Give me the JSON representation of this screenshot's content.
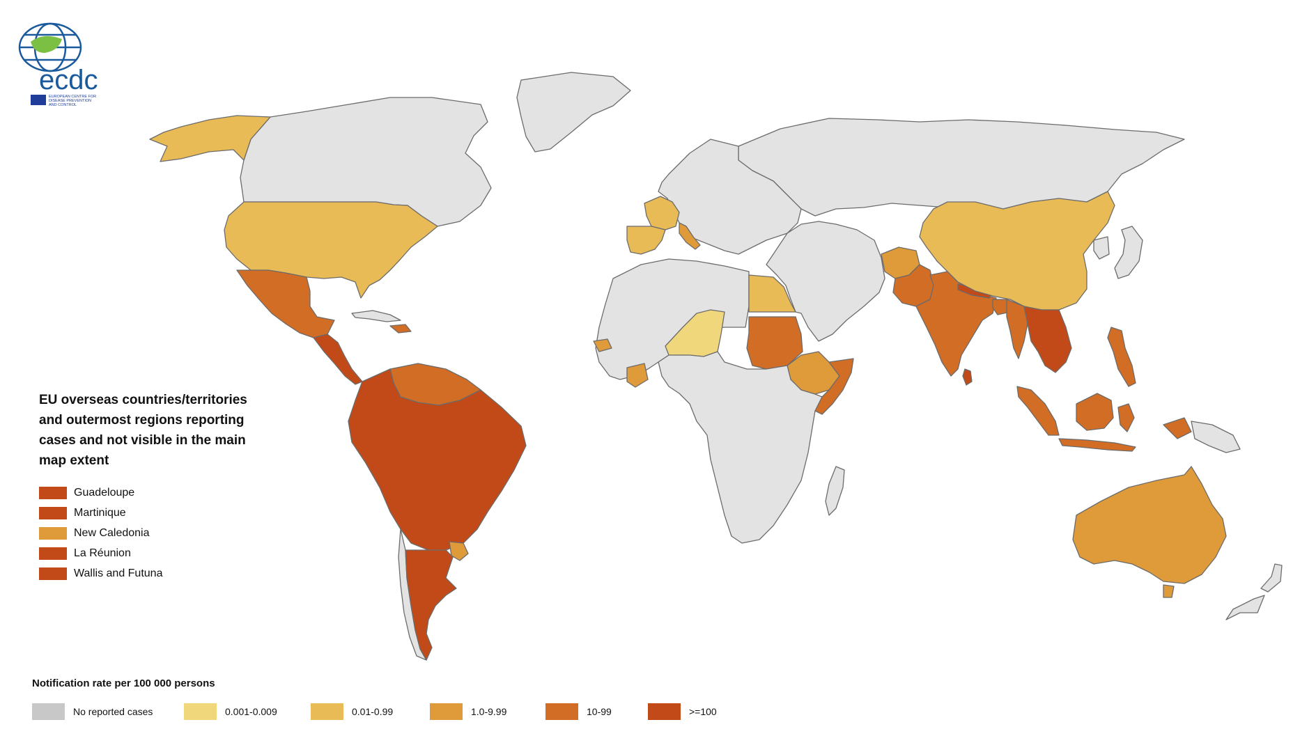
{
  "logo": {
    "wordmark": "ecdc",
    "caption_line1": "EUROPEAN CENTRE FOR",
    "caption_line2": "DISEASE PREVENTION",
    "caption_line3": "AND CONTROL"
  },
  "colors": {
    "no_cases": "#e3e3e3",
    "legend_no_cases": "#c8c8c8",
    "cat1": "#f0d77c",
    "cat2": "#e9bb57",
    "cat3": "#df9a3a",
    "cat4": "#d26d25",
    "cat5": "#c24a18",
    "border": "#6b6b6b",
    "ocean": "#ffffff"
  },
  "eu_overseas_legend": {
    "title": "EU overseas countries/territories and outermost regions reporting cases and not visible in the main map extent",
    "items": [
      {
        "label": "Guadeloupe",
        "color": "#c24a18"
      },
      {
        "label": "Martinique",
        "color": "#c24a18"
      },
      {
        "label": "New Caledonia",
        "color": "#df9a3a"
      },
      {
        "label": "La Réunion",
        "color": "#c24a18"
      },
      {
        "label": "Wallis and Futuna",
        "color": "#c24a18"
      }
    ]
  },
  "rate_legend": {
    "title": "Notification rate per 100 000 persons",
    "items": [
      {
        "label": "No reported cases",
        "color": "#c8c8c8"
      },
      {
        "label": "0.001-0.009",
        "color": "#f0d77c"
      },
      {
        "label": "0.01-0.99",
        "color": "#e9bb57"
      },
      {
        "label": "1.0-9.99",
        "color": "#df9a3a"
      },
      {
        "label": "10-99",
        "color": "#d26d25"
      },
      {
        "label": ">=100",
        "color": "#c24a18"
      }
    ]
  },
  "regions": [
    {
      "name": "Greenland",
      "category": "none"
    },
    {
      "name": "Canada",
      "category": "none"
    },
    {
      "name": "Alaska (USA)",
      "category": "0.01-0.99"
    },
    {
      "name": "United States",
      "category": "0.01-0.99"
    },
    {
      "name": "Mexico",
      "category": "10-99"
    },
    {
      "name": "Central America",
      "category": ">=100"
    },
    {
      "name": "Cuba",
      "category": "none"
    },
    {
      "name": "Dominican Republic",
      "category": "10-99"
    },
    {
      "name": "Venezuela and Guianas",
      "category": "10-99"
    },
    {
      "name": "South America (north)",
      "category": ">=100"
    },
    {
      "name": "Chile",
      "category": "none"
    },
    {
      "name": "Argentina",
      "category": ">=100"
    },
    {
      "name": "Uruguay",
      "category": "1.0-9.99"
    },
    {
      "name": "Russia and Northern Asia",
      "category": "none"
    },
    {
      "name": "Europe",
      "category": "none"
    },
    {
      "name": "France",
      "category": "0.01-0.99"
    },
    {
      "name": "Spain and Portugal",
      "category": "0.01-0.99"
    },
    {
      "name": "Italy",
      "category": "1.0-9.99"
    },
    {
      "name": "North and West Africa",
      "category": "none"
    },
    {
      "name": "Egypt",
      "category": "0.01-0.99"
    },
    {
      "name": "Niger",
      "category": "0.001-0.009"
    },
    {
      "name": "Sudan",
      "category": "10-99"
    },
    {
      "name": "Ethiopia",
      "category": "1.0-9.99"
    },
    {
      "name": "Somalia and Kenya coast",
      "category": "10-99"
    },
    {
      "name": "Senegal",
      "category": "1.0-9.99"
    },
    {
      "name": "Côte d'Ivoire",
      "category": "1.0-9.99"
    },
    {
      "name": "Central and Southern Africa",
      "category": "none"
    },
    {
      "name": "Madagascar",
      "category": "none"
    },
    {
      "name": "Middle East",
      "category": "none"
    },
    {
      "name": "Afghanistan",
      "category": "1.0-9.99"
    },
    {
      "name": "Pakistan",
      "category": "10-99"
    },
    {
      "name": "India",
      "category": "10-99"
    },
    {
      "name": "Nepal",
      "category": ">=100"
    },
    {
      "name": "Bangladesh",
      "category": "10-99"
    },
    {
      "name": "Sri Lanka",
      "category": ">=100"
    },
    {
      "name": "China",
      "category": "0.01-0.99"
    },
    {
      "name": "Japan and Korea",
      "category": "none"
    },
    {
      "name": "Myanmar",
      "category": "10-99"
    },
    {
      "name": "Thailand, Laos, Cambodia, Vietnam",
      "category": ">=100"
    },
    {
      "name": "Philippines",
      "category": "10-99"
    },
    {
      "name": "Malaysia and Sumatra",
      "category": "10-99"
    },
    {
      "name": "Borneo",
      "category": "10-99"
    },
    {
      "name": "Java",
      "category": "10-99"
    },
    {
      "name": "Sulawesi",
      "category": "10-99"
    },
    {
      "name": "Papua New Guinea",
      "category": "none"
    },
    {
      "name": "Australia",
      "category": "1.0-9.99"
    },
    {
      "name": "Tasmania",
      "category": "1.0-9.99"
    },
    {
      "name": "New Zealand",
      "category": "none"
    }
  ]
}
